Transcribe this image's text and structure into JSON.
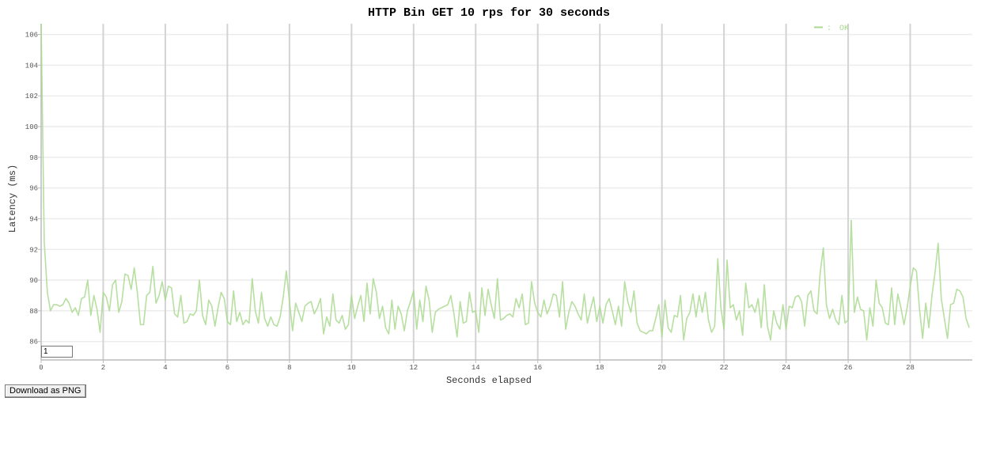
{
  "page": {
    "download_label": "Download as PNG",
    "resolution_value": "1"
  },
  "chart_data": {
    "type": "line",
    "title": "HTTP Bin GET 10 rps for 30 seconds",
    "xlabel": "Seconds elapsed",
    "ylabel": "Latency (ms)",
    "xlim": [
      0,
      30
    ],
    "ylim": [
      84.8,
      106.7
    ],
    "x_ticks": [
      0,
      2,
      4,
      6,
      8,
      10,
      12,
      14,
      16,
      18,
      20,
      22,
      24,
      26,
      28
    ],
    "y_ticks": [
      86,
      88,
      90,
      92,
      94,
      96,
      98,
      100,
      102,
      104,
      106
    ],
    "grid": true,
    "legend_position": "top-right",
    "colors": {
      "ok": "#a9d98f",
      "grid_major": "#d3d3d3",
      "grid_minor": "#ececec",
      "axis": "#bbbbbb"
    },
    "series": [
      {
        "name": "OK",
        "color": "#a9d98f",
        "x_start": 0,
        "x_step": 0.1,
        "values": [
          106.7,
          92.5,
          89.2,
          88.0,
          88.4,
          88.4,
          88.3,
          88.4,
          88.8,
          88.5,
          87.9,
          88.2,
          87.7,
          88.8,
          88.9,
          90.0,
          87.7,
          89.0,
          88.1,
          86.6,
          89.2,
          88.9,
          88.0,
          89.7,
          90.0,
          87.9,
          88.6,
          90.4,
          90.3,
          89.4,
          90.8,
          89.2,
          87.1,
          87.1,
          89.0,
          89.2,
          90.9,
          88.5,
          89.0,
          89.9,
          88.7,
          89.6,
          89.5,
          87.8,
          87.6,
          89.0,
          87.2,
          87.3,
          87.8,
          87.7,
          88.0,
          90.0,
          87.7,
          87.1,
          88.7,
          88.3,
          87.0,
          88.2,
          89.2,
          88.8,
          87.3,
          87.1,
          89.3,
          87.3,
          87.9,
          87.1,
          87.4,
          87.2,
          90.1,
          88.0,
          87.2,
          89.2,
          87.5,
          87.0,
          87.6,
          87.1,
          87.0,
          87.6,
          88.9,
          90.6,
          88.6,
          86.7,
          88.5,
          87.9,
          87.3,
          88.3,
          88.5,
          88.6,
          87.8,
          88.2,
          88.8,
          86.5,
          87.6,
          87.0,
          89.1,
          87.4,
          87.2,
          87.7,
          86.8,
          87.1,
          89.0,
          87.5,
          88.3,
          89.0,
          87.3,
          89.8,
          87.8,
          90.1,
          89.2,
          87.5,
          88.3,
          86.9,
          86.5,
          88.7,
          86.8,
          88.3,
          87.8,
          86.7,
          88.0,
          88.6,
          89.3,
          86.8,
          88.7,
          87.3,
          89.6,
          88.7,
          86.6,
          87.9,
          88.1,
          88.2,
          88.3,
          88.4,
          89.0,
          87.8,
          86.3,
          88.6,
          87.2,
          87.3,
          89.2,
          87.9,
          88.0,
          86.6,
          89.5,
          87.7,
          89.4,
          88.4,
          87.5,
          90.1,
          87.4,
          87.5,
          87.7,
          87.8,
          87.6,
          88.8,
          88.2,
          89.1,
          87.1,
          87.2,
          89.9,
          88.5,
          87.9,
          87.6,
          88.7,
          87.8,
          88.3,
          89.1,
          89.0,
          87.6,
          89.9,
          86.8,
          87.9,
          88.6,
          88.3,
          87.8,
          87.4,
          89.1,
          87.2,
          88.1,
          88.9,
          87.3,
          88.3,
          87.2,
          88.4,
          88.8,
          88.0,
          87.1,
          88.3,
          87.0,
          89.9,
          88.6,
          87.9,
          89.3,
          87.2,
          86.7,
          86.6,
          86.5,
          86.7,
          86.7,
          87.5,
          88.4,
          86.3,
          88.7,
          86.9,
          86.6,
          87.7,
          87.6,
          89.0,
          86.1,
          87.5,
          87.9,
          89.1,
          87.6,
          89.0,
          87.9,
          89.2,
          87.4,
          86.6,
          87.0,
          91.4,
          88.2,
          86.8,
          91.3,
          88.2,
          88.4,
          87.4,
          88.0,
          86.4,
          89.8,
          88.2,
          88.4,
          87.9,
          88.8,
          86.9,
          89.7,
          87.0,
          86.1,
          88.0,
          87.2,
          86.8,
          88.4,
          86.8,
          88.3,
          88.2,
          88.9,
          89.0,
          88.6,
          87.0,
          89.0,
          89.3,
          88.0,
          87.8,
          90.5,
          92.1,
          88.4,
          87.5,
          88.1,
          87.4,
          87.1,
          89.0,
          87.2,
          87.4,
          93.9,
          87.9,
          88.9,
          88.1,
          88.0,
          86.1,
          88.2,
          87.0,
          90.0,
          88.5,
          88.2,
          87.2,
          87.1,
          89.5,
          87.1,
          89.1,
          88.2,
          87.1,
          88.2,
          89.6,
          90.8,
          90.6,
          88.1,
          86.2,
          88.5,
          86.9,
          89.0,
          90.5,
          92.4,
          88.8,
          87.5,
          86.2,
          88.4,
          88.5,
          89.4,
          89.3,
          88.9,
          87.5,
          86.9
        ]
      }
    ]
  }
}
